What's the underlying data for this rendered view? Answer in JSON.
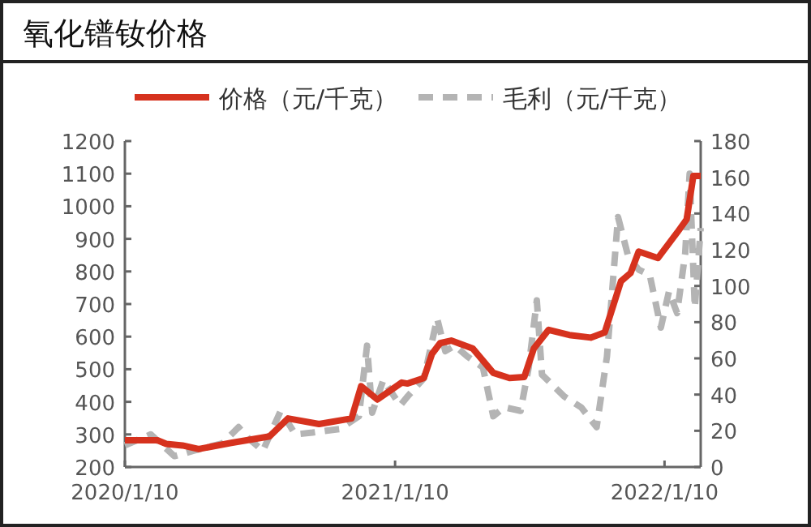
{
  "chart_data": {
    "type": "line",
    "title": "氧化镨钕价格",
    "legend": "top",
    "xlim": [
      "2020-01-10",
      "2022-02-28"
    ],
    "xticks": [
      {
        "value": "2020-01-10",
        "label": "2020/1/10"
      },
      {
        "value": "2021-01-10",
        "label": "2021/1/10"
      },
      {
        "value": "2022-01-10",
        "label": "2022/1/10"
      }
    ],
    "ylim": [
      200,
      1200
    ],
    "yticks": [
      200,
      300,
      400,
      500,
      600,
      700,
      800,
      900,
      1000,
      1100,
      1200
    ],
    "y2lim": [
      0,
      180
    ],
    "y2ticks": [
      0,
      20,
      40,
      60,
      80,
      100,
      120,
      140,
      160,
      180
    ],
    "series": [
      {
        "name": "价格（元/千克）",
        "color": "#d6321e",
        "line_style": "solid",
        "x": [
          "2020-01-10",
          "2020-02-23",
          "2020-03-06",
          "2020-03-28",
          "2020-04-19",
          "2020-06-02",
          "2020-07-24",
          "2020-08-18",
          "2020-09-29",
          "2020-11-12",
          "2020-11-25",
          "2020-12-17",
          "2021-01-19",
          "2021-01-27",
          "2021-02-18",
          "2021-03-01",
          "2021-03-12",
          "2021-03-27",
          "2021-04-25",
          "2021-05-23",
          "2021-06-14",
          "2021-07-04",
          "2021-07-17",
          "2021-08-06",
          "2021-09-03",
          "2021-10-02",
          "2021-10-21",
          "2021-11-12",
          "2021-11-25",
          "2021-12-06",
          "2022-01-01",
          "2022-01-27",
          "2022-02-09",
          "2022-02-18",
          "2022-02-28"
        ],
        "values": [
          282,
          282,
          271,
          266,
          255,
          274,
          294,
          349,
          332,
          349,
          448,
          407,
          459,
          456,
          473,
          547,
          580,
          588,
          564,
          489,
          473,
          476,
          564,
          621,
          605,
          597,
          613,
          770,
          795,
          861,
          841,
          919,
          960,
          1093,
          1093
        ]
      },
      {
        "name": "毛利（元/千克）",
        "color": "#b4b4b4",
        "line_style": "dashed",
        "axis": "y2",
        "x": [
          "2020-01-10",
          "2020-02-14",
          "2020-03-17",
          "2020-04-12",
          "2020-05-21",
          "2020-06-12",
          "2020-06-25",
          "2020-07-15",
          "2020-08-08",
          "2020-08-28",
          "2020-09-20",
          "2020-10-27",
          "2020-11-22",
          "2020-12-03",
          "2020-12-10",
          "2020-12-25",
          "2021-01-17",
          "2021-01-27",
          "2021-02-18",
          "2021-03-08",
          "2021-03-19",
          "2021-04-01",
          "2021-04-18",
          "2021-05-09",
          "2021-05-23",
          "2021-06-07",
          "2021-06-29",
          "2021-07-10",
          "2021-07-21",
          "2021-07-28",
          "2021-08-27",
          "2021-09-19",
          "2021-10-10",
          "2021-10-24",
          "2021-11-08",
          "2021-11-22",
          "2021-12-06",
          "2021-12-21",
          "2022-01-05",
          "2022-01-16",
          "2022-01-27",
          "2022-02-07",
          "2022-02-13",
          "2022-02-20",
          "2022-02-28"
        ],
        "values": [
          12,
          18,
          6,
          9,
          13,
          22,
          16,
          9,
          31,
          18,
          19,
          21,
          28,
          67,
          30,
          48,
          34,
          39,
          49,
          82,
          64,
          67,
          61,
          55,
          28,
          33,
          31,
          55,
          92,
          51,
          39,
          33,
          22,
          61,
          138,
          116,
          109,
          106,
          77,
          97,
          85,
          118,
          162,
          88,
          132
        ]
      }
    ]
  }
}
